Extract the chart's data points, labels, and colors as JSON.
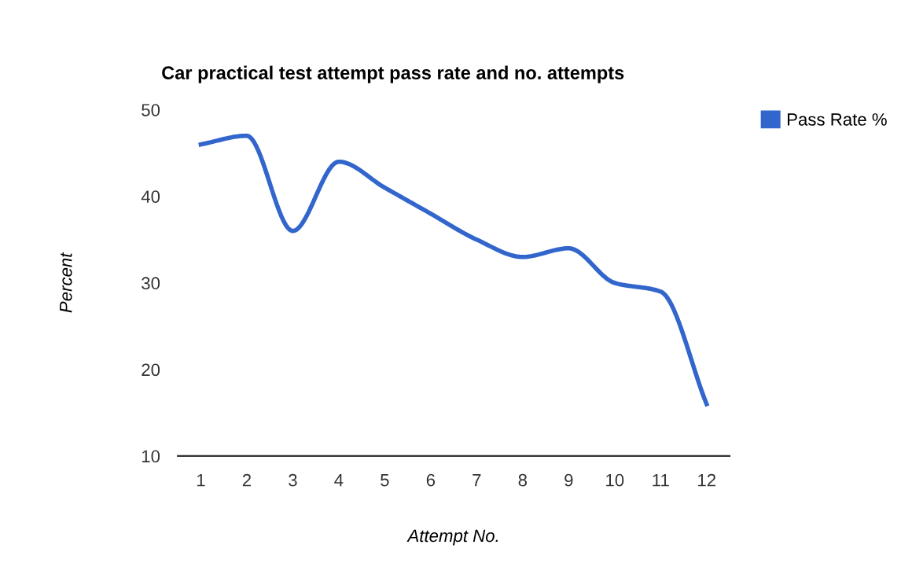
{
  "chart_data": {
    "type": "line",
    "title": "Car practical test attempt pass rate and no. attempts",
    "xlabel": "Attempt No.",
    "ylabel": "Percent",
    "categories": [
      "1",
      "2",
      "3",
      "4",
      "5",
      "6",
      "7",
      "8",
      "9",
      "10",
      "11",
      "12"
    ],
    "series": [
      {
        "name": "Pass Rate %",
        "color": "#3366cc",
        "values": [
          46,
          47,
          36,
          44,
          41,
          38,
          35,
          33,
          34,
          30,
          29,
          16
        ]
      }
    ],
    "ylim": [
      10,
      50
    ],
    "yticks": [
      10,
      20,
      30,
      40,
      50
    ],
    "grid": false,
    "legend": "right",
    "marker": "none",
    "line_style": "solid"
  }
}
